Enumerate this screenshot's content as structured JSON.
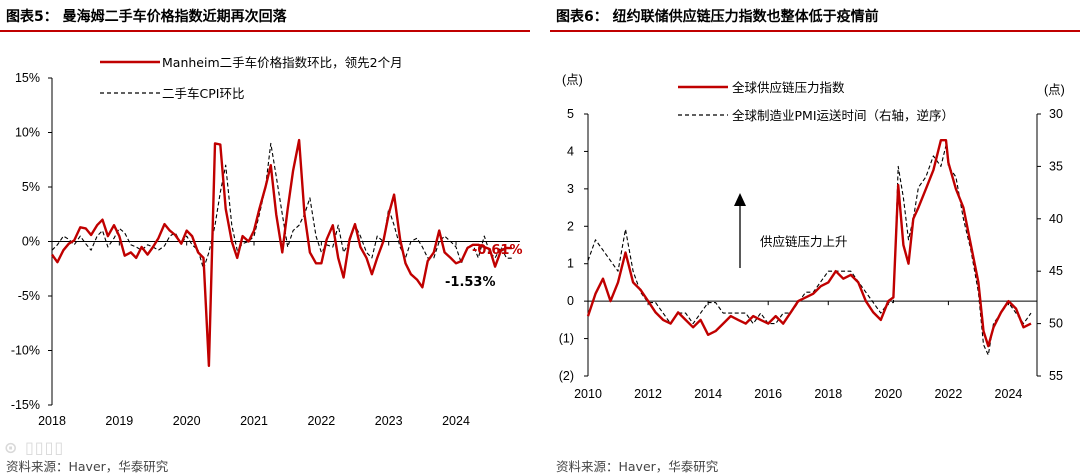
{
  "left": {
    "title": "图表5：  曼海姆二手车价格指数近期再次回落",
    "source": "资料来源：Haver，华泰研究",
    "chart_data": {
      "type": "line",
      "x_ticks": [
        "2018",
        "2019",
        "2020",
        "2021",
        "2022",
        "2023",
        "2024"
      ],
      "xlim": [
        2018.0,
        2024.95
      ],
      "ylim": [
        -15,
        15
      ],
      "y_ticks": [
        "15%",
        "10%",
        "5%",
        "0%",
        "-5%",
        "-10%",
        "-15%"
      ],
      "y_tick_values": [
        15,
        10,
        5,
        0,
        -5,
        -10,
        -15
      ],
      "series": [
        {
          "name": "Manheim二手车价格指数环比，领先2个月",
          "color": "#c00000",
          "style": "solid",
          "x": [
            2018.0,
            2018.08,
            2018.17,
            2018.25,
            2018.33,
            2018.42,
            2018.5,
            2018.58,
            2018.67,
            2018.75,
            2018.83,
            2018.92,
            2019.0,
            2019.08,
            2019.17,
            2019.25,
            2019.33,
            2019.42,
            2019.5,
            2019.58,
            2019.67,
            2019.75,
            2019.83,
            2019.92,
            2020.0,
            2020.08,
            2020.17,
            2020.25,
            2020.33,
            2020.42,
            2020.5,
            2020.58,
            2020.67,
            2020.75,
            2020.83,
            2020.92,
            2021.0,
            2021.08,
            2021.17,
            2021.25,
            2021.33,
            2021.42,
            2021.5,
            2021.58,
            2021.67,
            2021.75,
            2021.83,
            2021.92,
            2022.0,
            2022.08,
            2022.17,
            2022.25,
            2022.33,
            2022.42,
            2022.5,
            2022.58,
            2022.67,
            2022.75,
            2022.83,
            2022.92,
            2023.0,
            2023.08,
            2023.17,
            2023.25,
            2023.33,
            2023.42,
            2023.5,
            2023.58,
            2023.67,
            2023.75,
            2023.83,
            2023.92,
            2024.0,
            2024.08,
            2024.17,
            2024.25,
            2024.33,
            2024.42,
            2024.5,
            2024.58,
            2024.67,
            2024.75,
            2024.83
          ],
          "values": [
            -1.2,
            -1.9,
            -0.8,
            -0.2,
            0.1,
            1.3,
            1.2,
            0.6,
            1.5,
            2.0,
            0.5,
            1.5,
            0.5,
            -1.3,
            -1.0,
            -1.5,
            -0.5,
            -1.2,
            -0.5,
            0.3,
            1.6,
            1.0,
            0.6,
            -0.2,
            1.0,
            0.5,
            -1.0,
            -1.5,
            -11.4,
            9.0,
            8.9,
            3.0,
            0.0,
            -1.5,
            0.5,
            0.0,
            1.0,
            3.0,
            5.0,
            7.0,
            2.5,
            -1.0,
            3.0,
            6.5,
            9.3,
            2.5,
            -1.0,
            -2.0,
            -2.0,
            0.2,
            1.5,
            -1.5,
            -3.3,
            0.2,
            1.6,
            -0.5,
            -1.5,
            -3.0,
            -1.5,
            0.0,
            2.5,
            4.3,
            0.2,
            -2.0,
            -3.0,
            -3.5,
            -4.2,
            -1.8,
            -1.0,
            1.0,
            -1.0,
            -1.5,
            -2.0,
            -1.8,
            -0.6,
            -0.3,
            -0.3,
            -0.5,
            -0.7,
            -2.3,
            -0.8,
            -0.6,
            -0.61
          ]
        },
        {
          "name": "二手车CPI环比",
          "color": "#000000",
          "style": "dashed",
          "x": [
            2018.0,
            2018.08,
            2018.17,
            2018.25,
            2018.33,
            2018.42,
            2018.5,
            2018.58,
            2018.67,
            2018.75,
            2018.83,
            2018.92,
            2019.0,
            2019.08,
            2019.17,
            2019.25,
            2019.33,
            2019.42,
            2019.5,
            2019.58,
            2019.67,
            2019.75,
            2019.83,
            2019.92,
            2020.0,
            2020.08,
            2020.17,
            2020.25,
            2020.33,
            2020.42,
            2020.5,
            2020.58,
            2020.67,
            2020.75,
            2020.83,
            2020.92,
            2021.0,
            2021.08,
            2021.17,
            2021.25,
            2021.33,
            2021.42,
            2021.5,
            2021.58,
            2021.67,
            2021.75,
            2021.83,
            2021.92,
            2022.0,
            2022.08,
            2022.17,
            2022.25,
            2022.33,
            2022.42,
            2022.5,
            2022.58,
            2022.67,
            2022.75,
            2022.83,
            2022.92,
            2023.0,
            2023.08,
            2023.17,
            2023.25,
            2023.33,
            2023.42,
            2023.5,
            2023.58,
            2023.67,
            2023.75,
            2023.83,
            2023.92,
            2024.0,
            2024.08,
            2024.17,
            2024.25,
            2024.33,
            2024.42,
            2024.5,
            2024.58,
            2024.67,
            2024.75,
            2024.83
          ],
          "values": [
            -0.8,
            -0.3,
            0.5,
            0.2,
            -0.3,
            0.5,
            -0.2,
            -0.8,
            0.5,
            1.0,
            -0.5,
            0.3,
            1.2,
            0.8,
            -0.3,
            -0.5,
            -0.8,
            -0.3,
            -0.5,
            -0.8,
            -0.4,
            0.5,
            0.8,
            -0.2,
            0.5,
            -0.3,
            -0.8,
            -2.5,
            -1.0,
            1.5,
            4.5,
            7.0,
            1.5,
            -0.8,
            -0.2,
            0.0,
            0.5,
            2.5,
            5.0,
            9.0,
            6.0,
            2.5,
            -0.5,
            1.0,
            1.5,
            2.5,
            4.0,
            0.5,
            -1.0,
            -0.3,
            -0.5,
            1.5,
            -1.0,
            0.0,
            1.5,
            0.5,
            -1.0,
            -1.5,
            0.5,
            0.0,
            3.0,
            1.5,
            -0.5,
            -1.5,
            0.0,
            0.3,
            -0.5,
            -1.5,
            -1.5,
            0.0,
            0.5,
            0.0,
            -0.5,
            -2.0,
            -0.5,
            -0.3,
            -1.5,
            0.5,
            -1.0,
            -1.5,
            -0.5,
            -1.53,
            -1.53
          ]
        }
      ],
      "annotations": [
        {
          "text": "-0.61%",
          "color": "#c00000"
        },
        {
          "text": "-1.53%",
          "color": "#000000"
        }
      ]
    }
  },
  "right": {
    "title": "图表6：  纽约联储供应链压力指数也整体低于疫情前",
    "source": "资料来源：Haver，华泰研究",
    "left_unit": "(点)",
    "right_unit": "(点)",
    "arrow_label": "供应链压力上升",
    "chart_data": {
      "type": "line",
      "x_ticks": [
        "2010",
        "2012",
        "2014",
        "2016",
        "2018",
        "2020",
        "2022",
        "2024"
      ],
      "xlim": [
        2010.0,
        2024.95
      ],
      "ylim": [
        -2,
        5
      ],
      "y_ticks": [
        "5",
        "4",
        "3",
        "2",
        "1",
        "0",
        "(1)",
        "(2)"
      ],
      "y_tick_values": [
        5,
        4,
        3,
        2,
        1,
        0,
        -1,
        -2
      ],
      "y2lim": [
        55,
        30
      ],
      "y2_ticks": [
        "30",
        "35",
        "40",
        "45",
        "50",
        "55"
      ],
      "y2_tick_values": [
        30,
        35,
        40,
        45,
        50,
        55
      ],
      "series": [
        {
          "name": "全球供应链压力指数",
          "color": "#c00000",
          "style": "solid",
          "axis": "left",
          "x": [
            2010.0,
            2010.25,
            2010.5,
            2010.75,
            2011.0,
            2011.25,
            2011.5,
            2011.75,
            2012.0,
            2012.25,
            2012.5,
            2012.75,
            2013.0,
            2013.25,
            2013.5,
            2013.75,
            2014.0,
            2014.25,
            2014.5,
            2014.75,
            2015.0,
            2015.25,
            2015.5,
            2015.75,
            2016.0,
            2016.25,
            2016.5,
            2016.75,
            2017.0,
            2017.25,
            2017.5,
            2017.75,
            2018.0,
            2018.25,
            2018.5,
            2018.75,
            2019.0,
            2019.25,
            2019.5,
            2019.75,
            2020.0,
            2020.17,
            2020.33,
            2020.5,
            2020.67,
            2020.83,
            2021.0,
            2021.25,
            2021.5,
            2021.75,
            2021.92,
            2022.0,
            2022.25,
            2022.5,
            2022.75,
            2023.0,
            2023.17,
            2023.33,
            2023.5,
            2023.75,
            2024.0,
            2024.25,
            2024.5,
            2024.75
          ],
          "values": [
            -0.4,
            0.2,
            0.6,
            0.0,
            0.5,
            1.3,
            0.5,
            0.3,
            0.0,
            -0.3,
            -0.5,
            -0.6,
            -0.3,
            -0.5,
            -0.7,
            -0.5,
            -0.9,
            -0.8,
            -0.6,
            -0.4,
            -0.5,
            -0.6,
            -0.4,
            -0.5,
            -0.6,
            -0.4,
            -0.6,
            -0.3,
            0.0,
            0.1,
            0.2,
            0.4,
            0.5,
            0.8,
            0.6,
            0.7,
            0.5,
            0.0,
            -0.3,
            -0.5,
            0.0,
            0.1,
            3.1,
            1.5,
            1.0,
            2.2,
            2.5,
            3.0,
            3.5,
            4.3,
            4.3,
            3.7,
            3.0,
            2.5,
            1.5,
            0.5,
            -0.8,
            -1.2,
            -0.7,
            -0.3,
            0.0,
            -0.2,
            -0.7,
            -0.6
          ]
        },
        {
          "name": "全球制造业PMI运送时间（右轴，逆序）",
          "color": "#000000",
          "style": "dashed",
          "axis": "right",
          "x": [
            2010.0,
            2010.25,
            2010.5,
            2010.75,
            2011.0,
            2011.25,
            2011.5,
            2011.75,
            2012.0,
            2012.25,
            2012.5,
            2012.75,
            2013.0,
            2013.25,
            2013.5,
            2013.75,
            2014.0,
            2014.25,
            2014.5,
            2014.75,
            2015.0,
            2015.25,
            2015.5,
            2015.75,
            2016.0,
            2016.25,
            2016.5,
            2016.75,
            2017.0,
            2017.25,
            2017.5,
            2017.75,
            2018.0,
            2018.25,
            2018.5,
            2018.75,
            2019.0,
            2019.25,
            2019.5,
            2019.75,
            2020.0,
            2020.17,
            2020.33,
            2020.5,
            2020.67,
            2020.83,
            2021.0,
            2021.25,
            2021.5,
            2021.75,
            2021.92,
            2022.0,
            2022.25,
            2022.5,
            2022.75,
            2023.0,
            2023.17,
            2023.33,
            2023.5,
            2023.75,
            2024.0,
            2024.25,
            2024.5,
            2024.75
          ],
          "values": [
            44,
            42,
            43,
            44,
            45,
            41,
            45,
            47,
            48,
            48,
            49,
            50,
            49,
            49,
            50,
            49,
            48,
            48,
            49,
            49,
            49,
            49,
            50,
            49,
            50,
            50,
            49,
            49,
            48,
            47,
            47,
            46,
            45,
            45,
            45,
            45,
            46,
            47,
            48,
            49,
            48,
            48,
            35,
            38,
            42,
            40,
            37,
            36,
            34,
            35,
            33,
            35,
            36,
            40,
            43,
            47,
            52,
            53,
            50,
            49,
            48,
            49,
            50,
            49
          ]
        }
      ]
    }
  }
}
